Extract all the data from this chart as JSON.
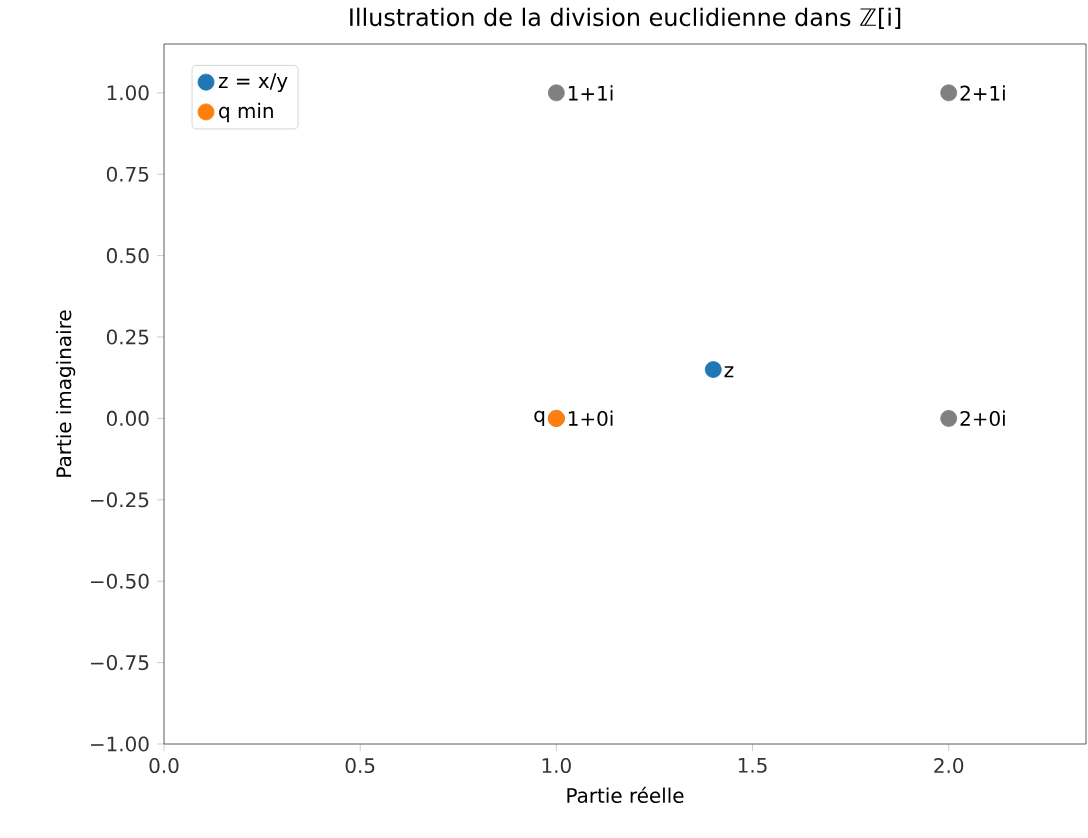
{
  "chart_data": {
    "type": "scatter",
    "title": "Illustration de la division euclidienne dans ℤ[i]",
    "xlabel": "Partie réelle",
    "ylabel": "Partie imaginaire",
    "series": [
      {
        "color": "#808080",
        "x": [
          1,
          1,
          2,
          2
        ],
        "values": [
          0,
          1,
          0,
          1
        ]
      },
      {
        "name": "z = x/y",
        "color": "#1f77b4",
        "x": [
          1.4
        ],
        "values": [
          0.15
        ]
      },
      {
        "name": "q min",
        "color": "#ff7f0e",
        "x": [
          1
        ],
        "values": [
          0
        ]
      }
    ],
    "annotations": [
      {
        "text": "1+0i",
        "x": 1,
        "y": 0
      },
      {
        "text": "1+1i",
        "x": 1,
        "y": 1
      },
      {
        "text": "2+0i",
        "x": 2,
        "y": 0
      },
      {
        "text": "2+1i",
        "x": 2,
        "y": 1
      },
      {
        "text": "z",
        "x": 1.4,
        "y": 0.15
      },
      {
        "text": "q",
        "x": 1,
        "y": 0
      }
    ],
    "xlim": [
      0,
      2.35
    ],
    "ylim": [
      -1,
      1.15
    ],
    "xticks": [
      {
        "value": 0,
        "label": "0.0"
      },
      {
        "value": 0.5,
        "label": "0.5"
      },
      {
        "value": 1,
        "label": "1.0"
      },
      {
        "value": 1.5,
        "label": "1.5"
      },
      {
        "value": 2,
        "label": "2.0"
      }
    ],
    "yticks": [
      {
        "value": -1,
        "label": "−1.00"
      },
      {
        "value": -0.75,
        "label": "−0.75"
      },
      {
        "value": -0.5,
        "label": "−0.50"
      },
      {
        "value": -0.25,
        "label": "−0.25"
      },
      {
        "value": 0,
        "label": "0.00"
      },
      {
        "value": 0.25,
        "label": "0.25"
      },
      {
        "value": 0.5,
        "label": "0.50"
      },
      {
        "value": 0.75,
        "label": "0.75"
      },
      {
        "value": 1,
        "label": "1.00"
      }
    ],
    "legend": "top left",
    "marker": "circle",
    "grid": false
  }
}
